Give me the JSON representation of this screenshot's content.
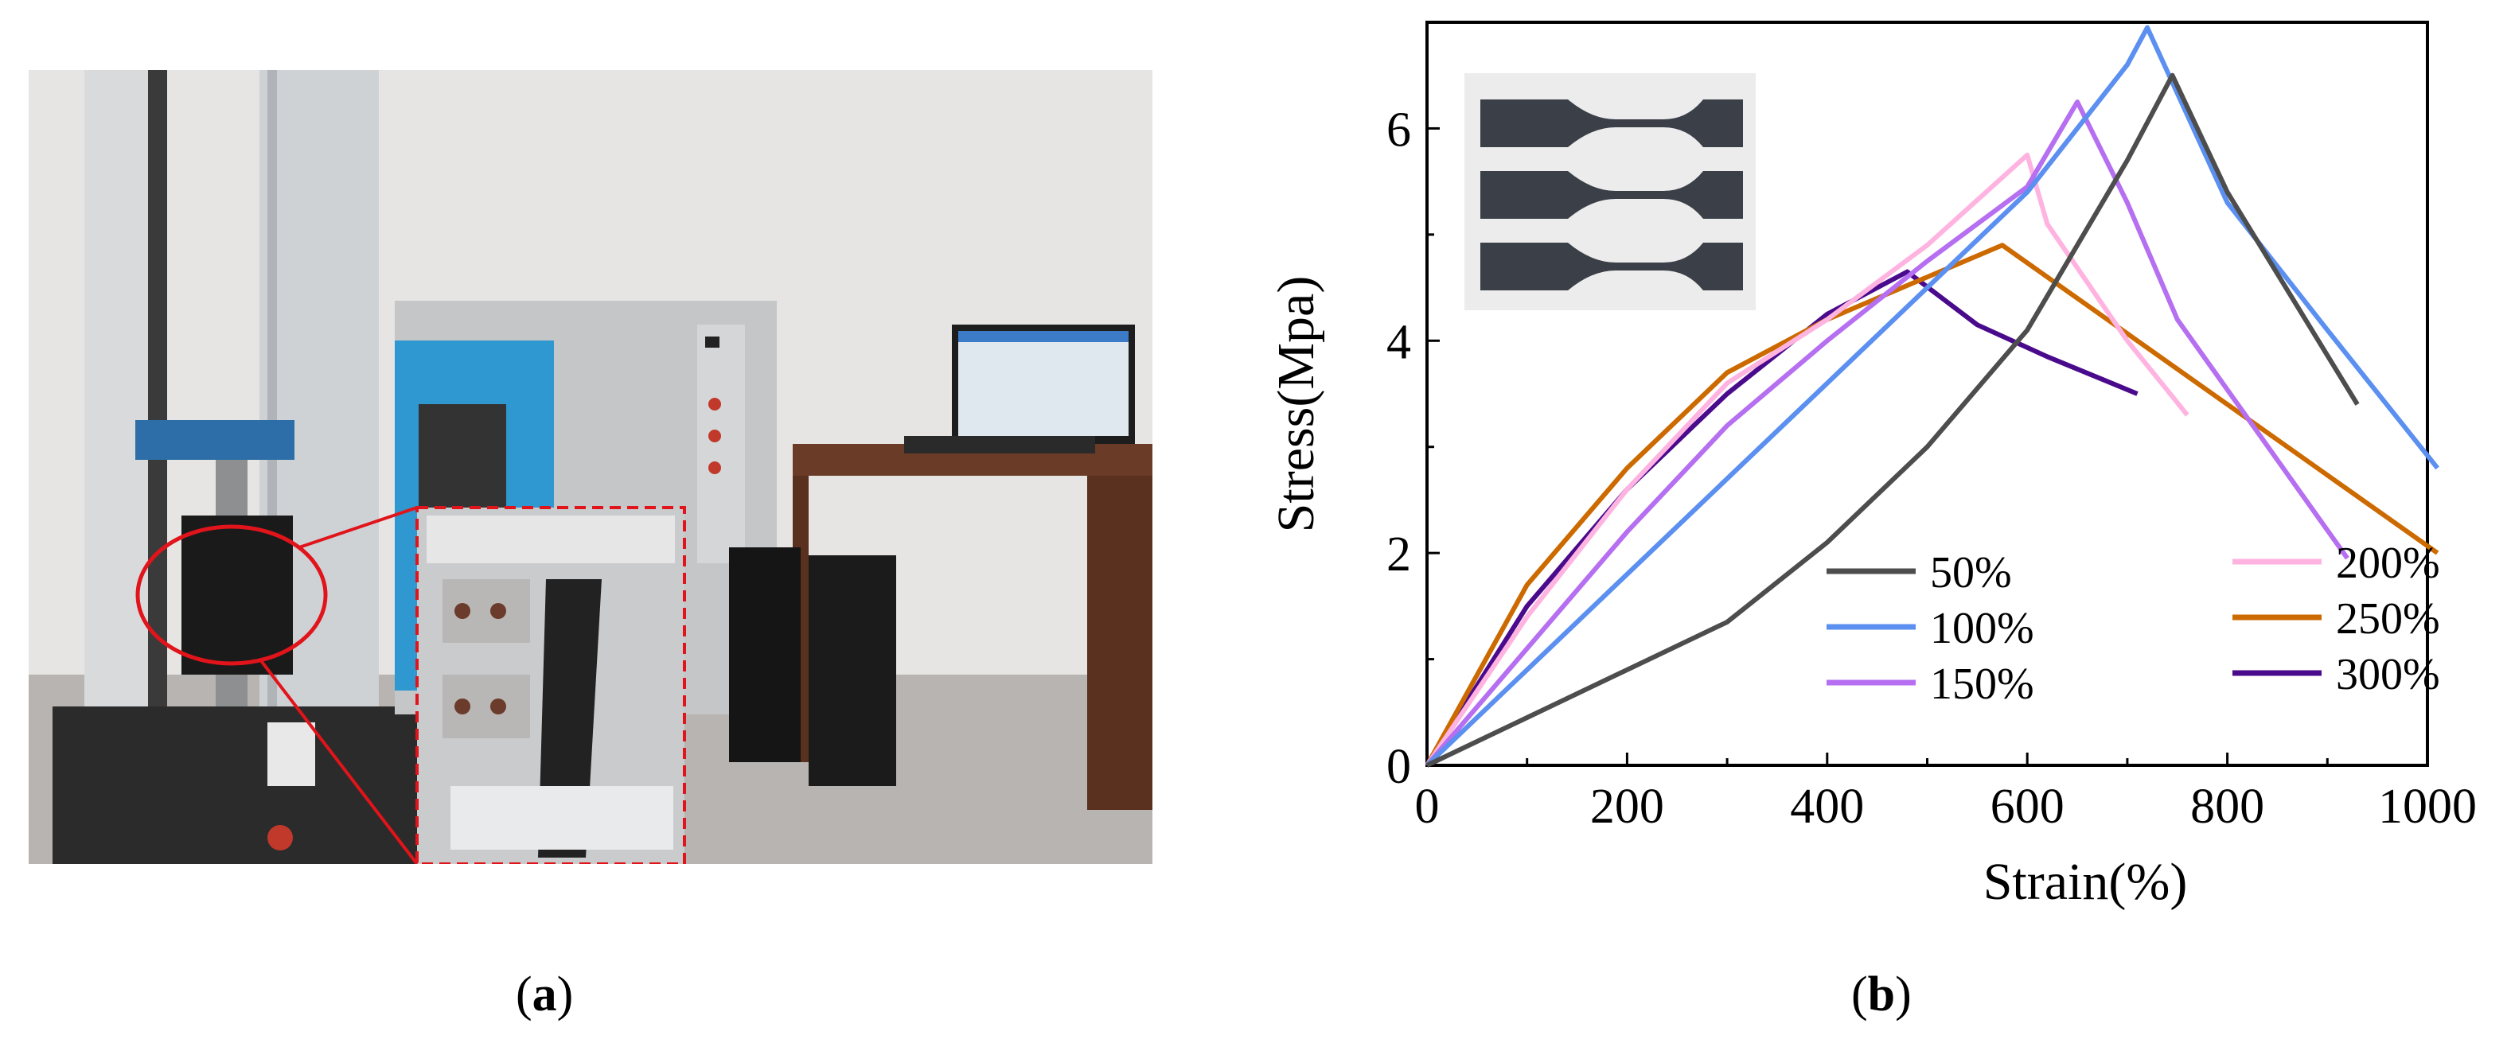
{
  "captions": {
    "a": "a",
    "b": "b",
    "open": "(",
    "close": ")"
  },
  "colors": {
    "s50": "#4d4d4d",
    "s100": "#5b8ff0",
    "s150": "#b56ff0",
    "s200": "#ffb3e0",
    "s250": "#cc6a00",
    "s300": "#4a0a8c"
  },
  "chart_data": {
    "type": "line",
    "xlabel": "Strain(%)",
    "ylabel": "Stress(Mpa)",
    "xlim": [
      0,
      1000
    ],
    "ylim": [
      0,
      7
    ],
    "xticks": [
      "0",
      "200",
      "400",
      "600",
      "800",
      "1000"
    ],
    "yticks": [
      "0",
      "2",
      "4",
      "6"
    ],
    "legend_position": "bottom-right",
    "inset": "photo of three dumbbell-shaped test specimens (top-left)",
    "series": [
      {
        "name": "50%",
        "color": "#4d4d4d",
        "x": [
          0,
          100,
          200,
          300,
          400,
          500,
          600,
          700,
          745,
          800,
          930
        ],
        "y": [
          0,
          0.45,
          0.9,
          1.35,
          2.1,
          3.0,
          4.1,
          5.7,
          6.5,
          5.4,
          3.4
        ]
      },
      {
        "name": "100%",
        "color": "#5b8ff0",
        "x": [
          0,
          100,
          200,
          300,
          400,
          500,
          600,
          700,
          720,
          800,
          900,
          1010
        ],
        "y": [
          0,
          0.9,
          1.8,
          2.7,
          3.6,
          4.5,
          5.4,
          6.6,
          6.95,
          5.3,
          4.1,
          2.8
        ]
      },
      {
        "name": "150%",
        "color": "#b56ff0",
        "x": [
          0,
          100,
          200,
          300,
          400,
          500,
          600,
          650,
          700,
          750,
          920
        ],
        "y": [
          0,
          1.1,
          2.2,
          3.2,
          4.0,
          4.75,
          5.45,
          6.25,
          5.3,
          4.2,
          1.95
        ]
      },
      {
        "name": "200%",
        "color": "#ffb3e0",
        "x": [
          0,
          100,
          200,
          300,
          400,
          500,
          600,
          620,
          700,
          760
        ],
        "y": [
          0,
          1.4,
          2.6,
          3.6,
          4.2,
          4.9,
          5.75,
          5.1,
          4.0,
          3.3
        ]
      },
      {
        "name": "250%",
        "color": "#cc6a00",
        "x": [
          0,
          100,
          200,
          300,
          400,
          500,
          575,
          650,
          800,
          1010
        ],
        "y": [
          0,
          1.7,
          2.8,
          3.7,
          4.2,
          4.6,
          4.9,
          4.4,
          3.4,
          2.0
        ]
      },
      {
        "name": "300%",
        "color": "#4a0a8c",
        "x": [
          0,
          100,
          200,
          300,
          400,
          480,
          550,
          620,
          710
        ],
        "y": [
          0,
          1.5,
          2.6,
          3.5,
          4.25,
          4.65,
          4.15,
          3.85,
          3.5
        ]
      }
    ]
  }
}
